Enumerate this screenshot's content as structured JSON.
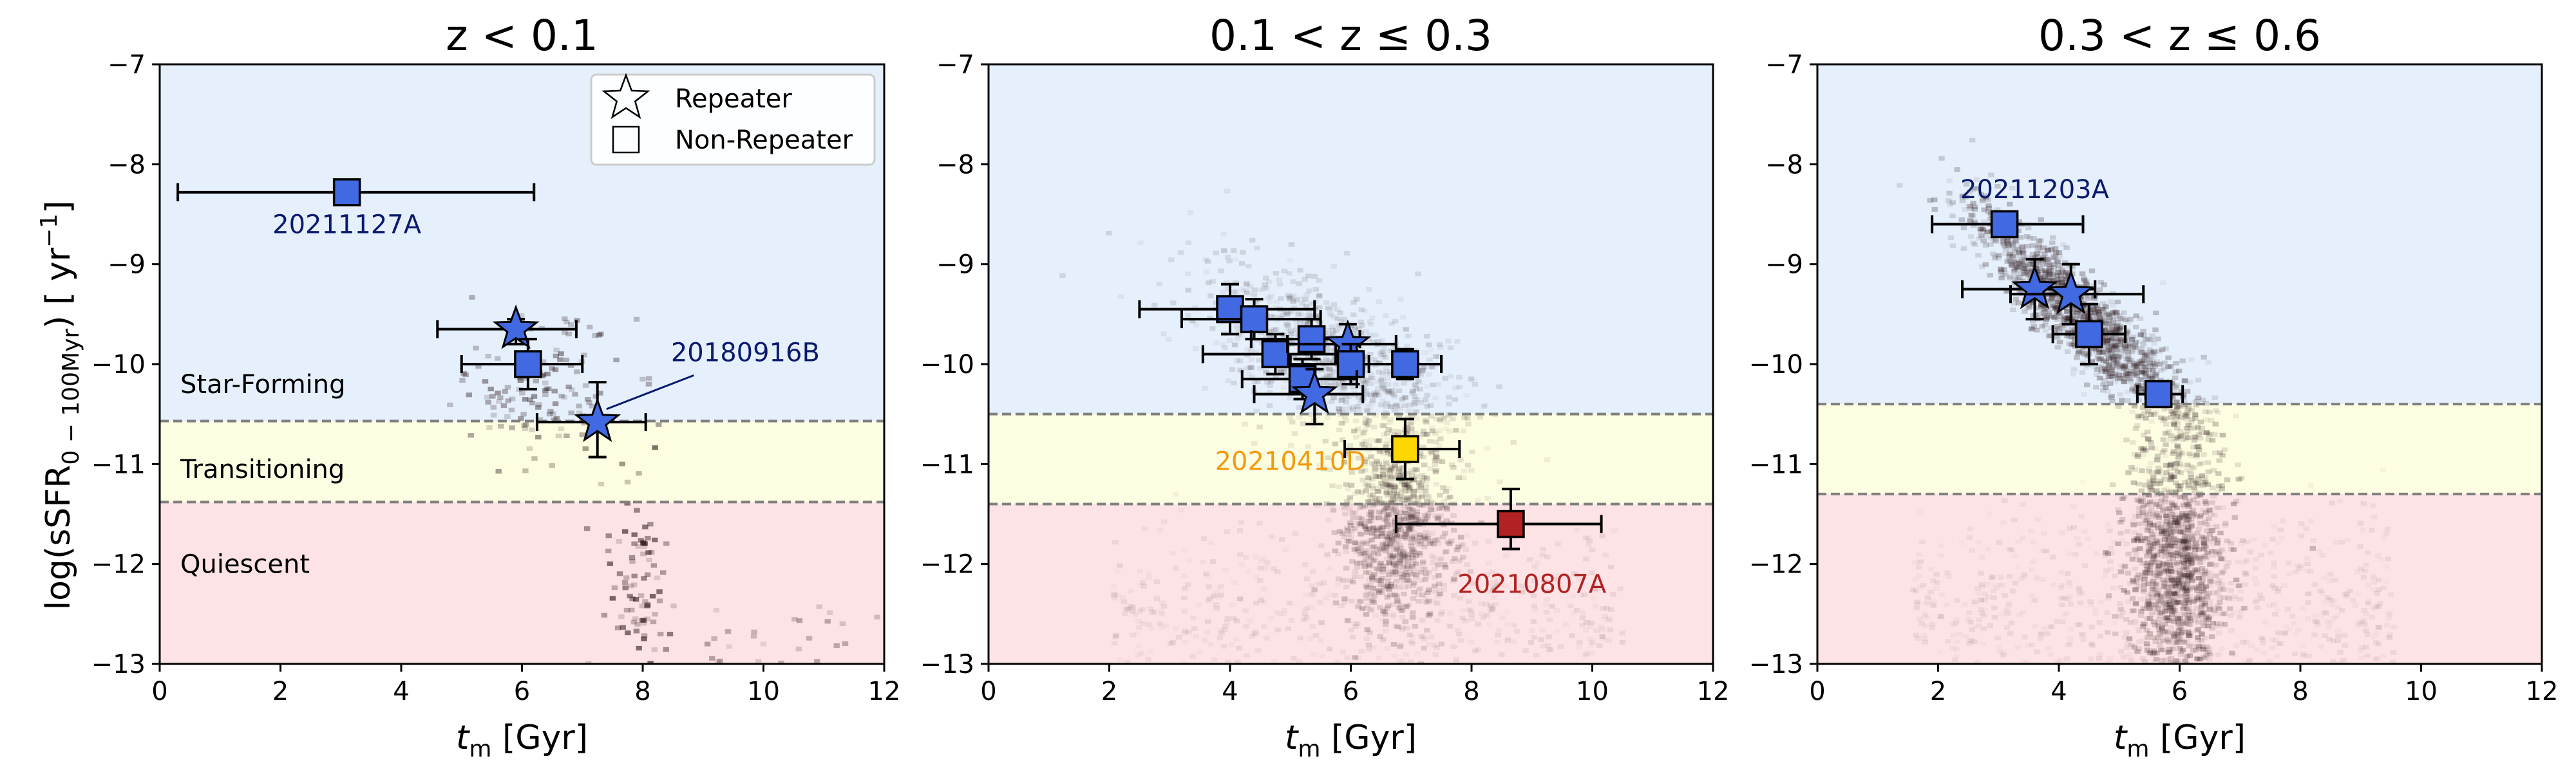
{
  "figure": {
    "ylabel_main": "log(sSFR",
    "ylabel_sub": "0 − 100Myr",
    "ylabel_tail": ") [ yr",
    "ylabel_exp": "−1",
    "ylabel_close": "]",
    "xlabel_main": "t",
    "xlabel_sub": "m",
    "xlabel_unit": " [Gyr]"
  },
  "legend": {
    "items": [
      {
        "label": "Repeater",
        "marker": "star"
      },
      {
        "label": "Non-Repeater",
        "marker": "square"
      }
    ]
  },
  "colors": {
    "star_forming_band": "#e5f0fc",
    "transitioning_band": "#fdfde2",
    "quiescent_band": "#fde3e5",
    "marker_blue": "#4169e1",
    "marker_yellow": "#ffd700",
    "marker_red": "#b22222",
    "label_navy": "#0b1a6e",
    "label_orange": "#f29a0e",
    "label_red": "#b22222",
    "threshold_line": "#808080"
  },
  "chart_data": [
    {
      "type": "scatter",
      "title": "z < 0.1",
      "xlim": [
        0,
        12
      ],
      "ylim": [
        -13,
        -7
      ],
      "xticks": [
        0,
        2,
        4,
        6,
        8,
        10,
        12
      ],
      "yticks": [
        -13,
        -12,
        -11,
        -10,
        -9,
        -8,
        -7
      ],
      "thresholds": [
        -10.57,
        -11.38
      ],
      "regions": [
        {
          "label": "Star-Forming",
          "y": -10.2
        },
        {
          "label": "Transitioning",
          "y": -11.05
        },
        {
          "label": "Quiescent",
          "y": -12.0
        }
      ],
      "points": [
        {
          "x": 3.1,
          "y": -8.28,
          "xerr": [
            2.8,
            3.1
          ],
          "yerr": [
            0.1,
            0.1
          ],
          "marker": "square",
          "color": "blue"
        },
        {
          "x": 5.9,
          "y": -9.65,
          "xerr": [
            1.3,
            1.0
          ],
          "yerr": [
            0.15,
            0.1
          ],
          "marker": "star",
          "color": "blue"
        },
        {
          "x": 6.1,
          "y": -10.0,
          "xerr": [
            1.1,
            0.9
          ],
          "yerr": [
            0.25,
            0.25
          ],
          "marker": "square",
          "color": "blue"
        },
        {
          "x": 7.25,
          "y": -10.58,
          "xerr": [
            1.0,
            0.8
          ],
          "yerr": [
            0.35,
            0.4
          ],
          "marker": "star",
          "color": "blue"
        }
      ],
      "annotations": [
        {
          "text": "20211127A",
          "x": 3.1,
          "y": -8.6,
          "color": "navy"
        },
        {
          "text": "20180916B",
          "x": 9.7,
          "y": -9.88,
          "color": "navy",
          "arrow_to": [
            7.4,
            -10.45
          ]
        }
      ],
      "density": "sparse"
    },
    {
      "type": "scatter",
      "title": "0.1 < z ≤ 0.3",
      "xlim": [
        0,
        12
      ],
      "ylim": [
        -13,
        -7
      ],
      "xticks": [
        0,
        2,
        4,
        6,
        8,
        10,
        12
      ],
      "yticks": [
        -13,
        -12,
        -11,
        -10,
        -9,
        -8,
        -7
      ],
      "thresholds": [
        -10.5,
        -11.4
      ],
      "points": [
        {
          "x": 4.0,
          "y": -9.45,
          "xerr": [
            1.5,
            1.4
          ],
          "yerr": [
            0.25,
            0.25
          ],
          "marker": "square",
          "color": "blue"
        },
        {
          "x": 4.4,
          "y": -9.55,
          "xerr": [
            1.2,
            1.1
          ],
          "yerr": [
            0.2,
            0.2
          ],
          "marker": "square",
          "color": "blue"
        },
        {
          "x": 4.75,
          "y": -9.9,
          "xerr": [
            1.2,
            1.0
          ],
          "yerr": [
            0.2,
            0.2
          ],
          "marker": "square",
          "color": "blue"
        },
        {
          "x": 5.35,
          "y": -9.75,
          "xerr": [
            1.0,
            0.8
          ],
          "yerr": [
            0.2,
            0.2
          ],
          "marker": "square",
          "color": "blue"
        },
        {
          "x": 5.95,
          "y": -9.8,
          "xerr": [
            1.0,
            0.8
          ],
          "yerr": [
            0.2,
            0.2
          ],
          "marker": "star",
          "color": "blue"
        },
        {
          "x": 6.0,
          "y": -10.0,
          "xerr": [
            1.0,
            0.8
          ],
          "yerr": [
            0.2,
            0.2
          ],
          "marker": "square",
          "color": "blue"
        },
        {
          "x": 5.2,
          "y": -10.15,
          "xerr": [
            1.0,
            0.9
          ],
          "yerr": [
            0.2,
            0.2
          ],
          "marker": "square",
          "color": "blue"
        },
        {
          "x": 5.4,
          "y": -10.3,
          "xerr": [
            1.0,
            0.8
          ],
          "yerr": [
            0.3,
            0.25
          ],
          "marker": "star",
          "color": "blue"
        },
        {
          "x": 6.9,
          "y": -10.0,
          "xerr": [
            0.6,
            0.6
          ],
          "yerr": [
            0.15,
            0.15
          ],
          "marker": "square",
          "color": "blue"
        },
        {
          "x": 6.9,
          "y": -10.85,
          "xerr": [
            1.0,
            0.9
          ],
          "yerr": [
            0.3,
            0.3
          ],
          "marker": "square",
          "color": "yellow"
        },
        {
          "x": 8.65,
          "y": -11.6,
          "xerr": [
            1.9,
            1.5
          ],
          "yerr": [
            0.25,
            0.35
          ],
          "marker": "square",
          "color": "red"
        }
      ],
      "annotations": [
        {
          "text": "20210410D",
          "x": 5.0,
          "y": -10.97,
          "color": "orange"
        },
        {
          "text": "20210807A",
          "x": 9.0,
          "y": -12.2,
          "color": "red"
        }
      ],
      "density": "medium"
    },
    {
      "type": "scatter",
      "title": "0.3 < z ≤ 0.6",
      "xlim": [
        0,
        12
      ],
      "ylim": [
        -13,
        -7
      ],
      "xticks": [
        0,
        2,
        4,
        6,
        8,
        10,
        12
      ],
      "yticks": [
        -13,
        -12,
        -11,
        -10,
        -9,
        -8,
        -7
      ],
      "thresholds": [
        -10.4,
        -11.3
      ],
      "points": [
        {
          "x": 3.1,
          "y": -8.6,
          "xerr": [
            1.2,
            1.3
          ],
          "yerr": [
            0.1,
            0.1
          ],
          "marker": "square",
          "color": "blue"
        },
        {
          "x": 3.6,
          "y": -9.25,
          "xerr": [
            1.2,
            1.0
          ],
          "yerr": [
            0.3,
            0.3
          ],
          "marker": "star",
          "color": "blue"
        },
        {
          "x": 4.2,
          "y": -9.3,
          "xerr": [
            1.0,
            1.2
          ],
          "yerr": [
            0.3,
            0.3
          ],
          "marker": "star",
          "color": "blue"
        },
        {
          "x": 4.5,
          "y": -9.7,
          "xerr": [
            0.6,
            0.6
          ],
          "yerr": [
            0.3,
            0.3
          ],
          "marker": "square",
          "color": "blue"
        },
        {
          "x": 5.65,
          "y": -10.3,
          "xerr": [
            0.35,
            0.4
          ],
          "yerr": [
            0.1,
            0.1
          ],
          "marker": "square",
          "color": "blue"
        }
      ],
      "annotations": [
        {
          "text": "20211203A",
          "x": 3.6,
          "y": -8.25,
          "color": "navy"
        }
      ],
      "density": "dense"
    }
  ]
}
